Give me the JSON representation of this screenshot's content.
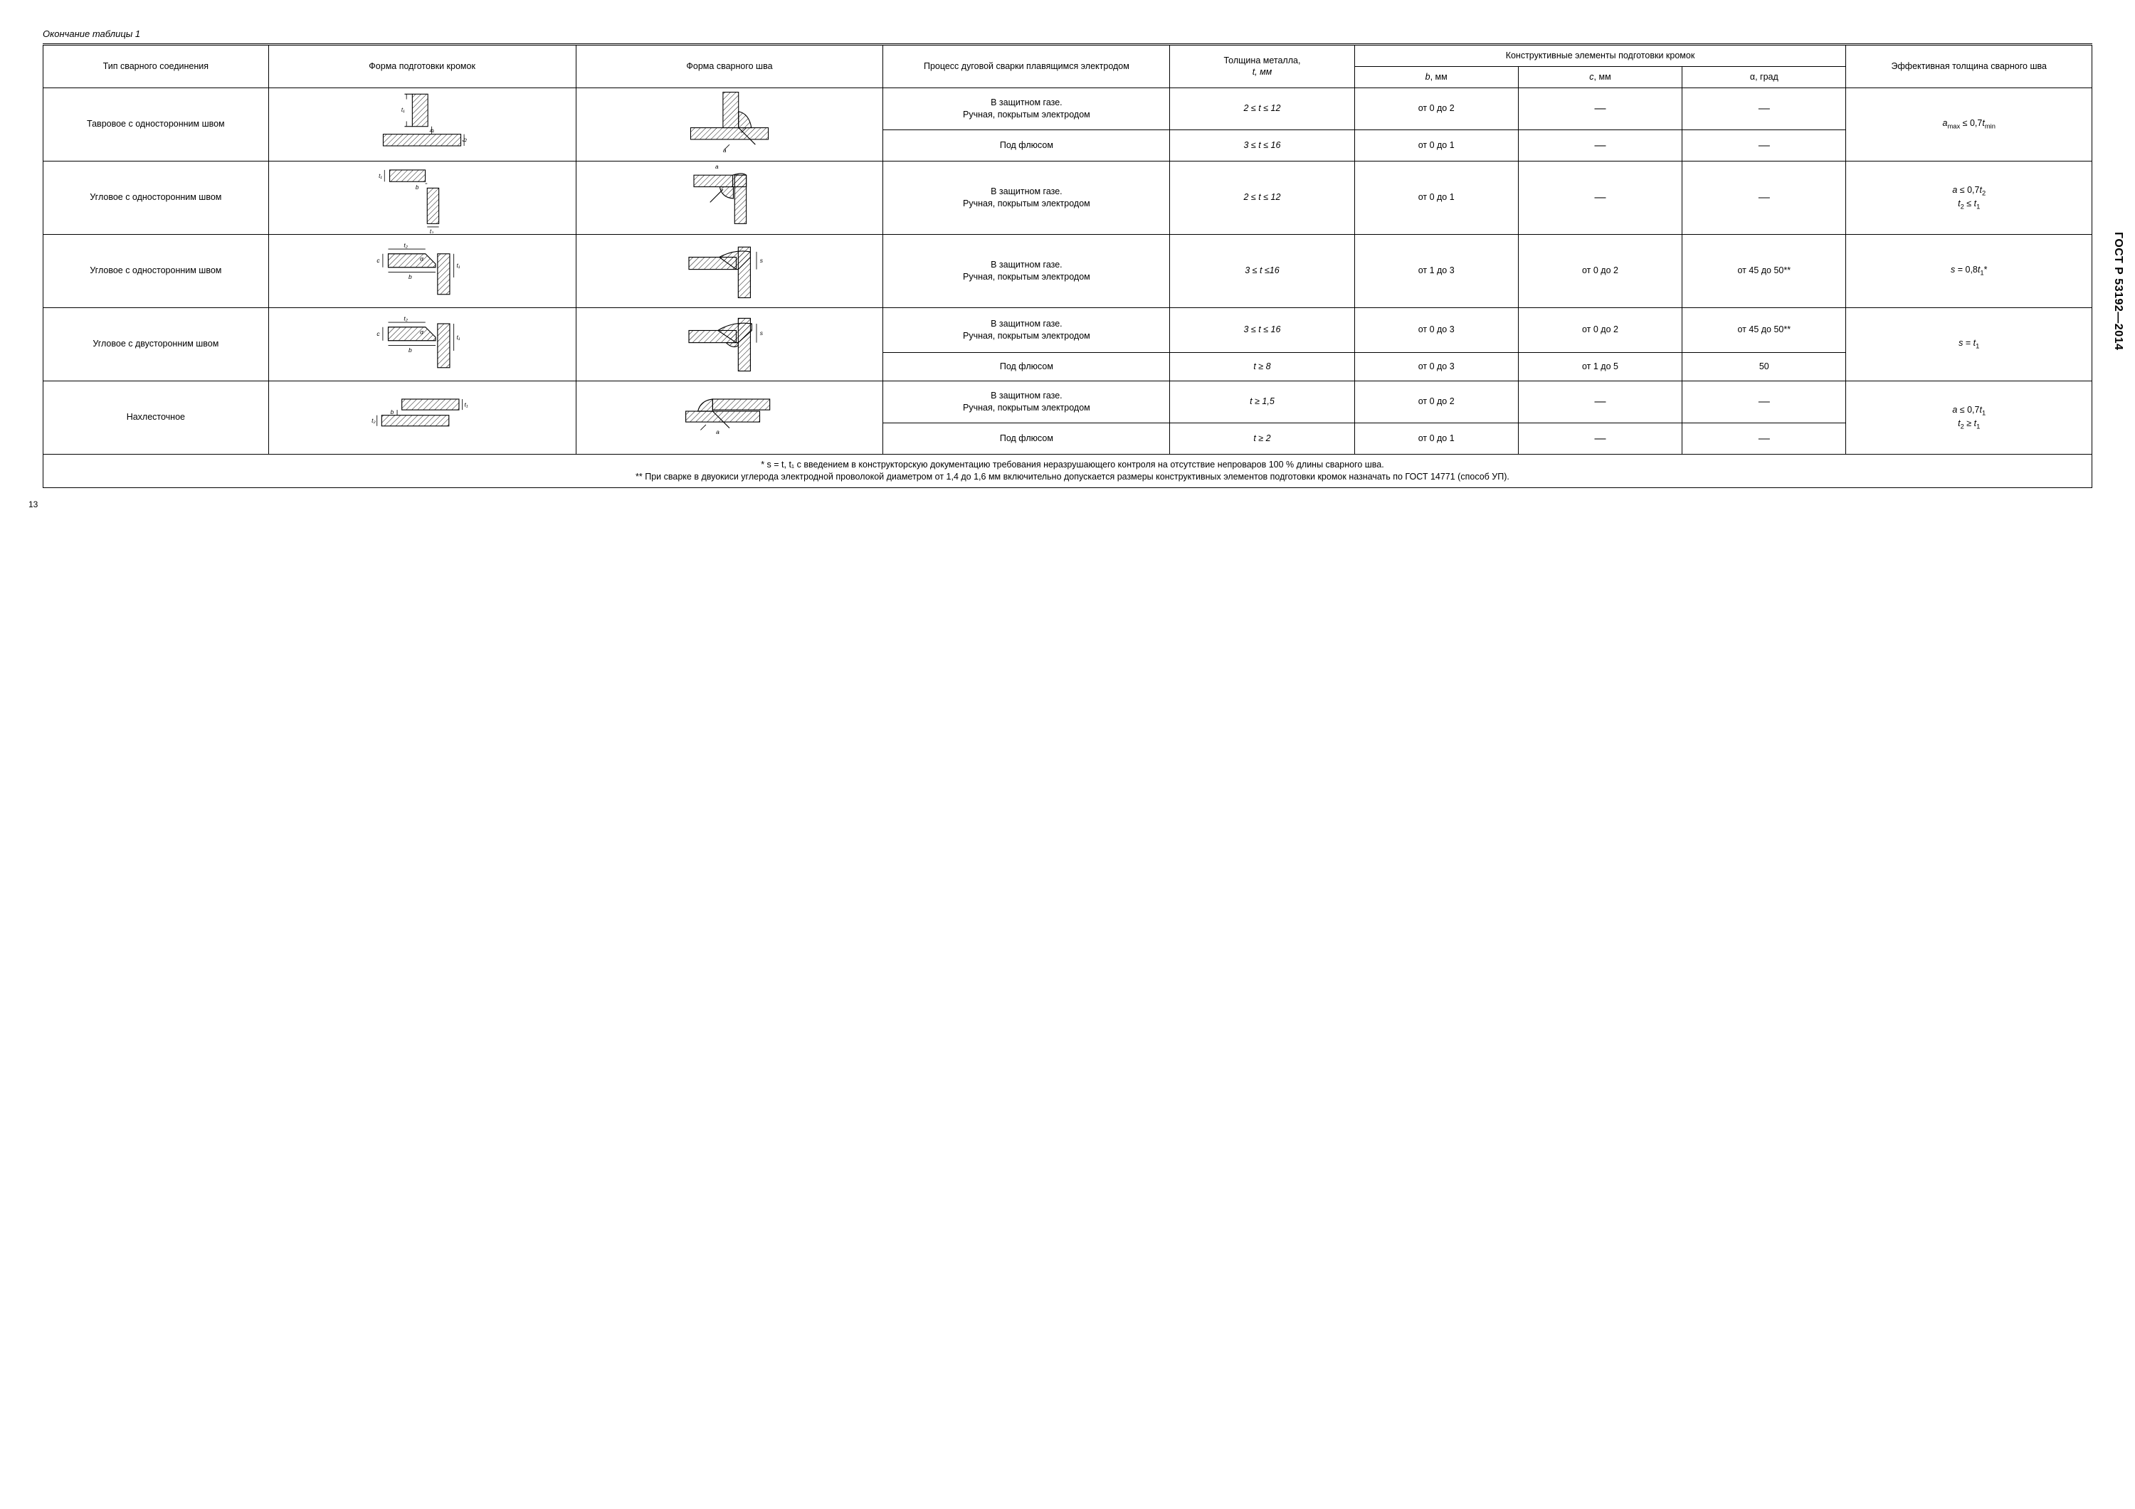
{
  "doc_id": "ГОСТ Р 53192—2014",
  "page_number": "13",
  "caption": "Окончание таблицы 1",
  "header": {
    "c1": "Тип сварного соединения",
    "c2": "Форма подготовки кромок",
    "c3": "Форма сварного шва",
    "c4": "Процесс дуговой сварки плавящимся электродом",
    "c5_top": "Толщина металла,",
    "c5_bot": "t, мм",
    "c6_group": "Конструктивные элементы подготовки кромок",
    "c6a": "b, мм",
    "c6b": "c, мм",
    "c6c": "α, град",
    "c7": "Эффективная толщина сварного шва"
  },
  "rows": [
    {
      "joint": "Тавровое с односторон­ним швом",
      "proc1": "В защитном газе.\nРучная, покры­тым электродом",
      "t1": "2 ≤ t ≤ 12",
      "b1": "от 0 до 2",
      "cc1": "—",
      "a1": "—",
      "proc2": "Под флюсом",
      "t2": "3 ≤ t ≤ 16",
      "b2": "от 0 до 1",
      "cc2": "—",
      "a2": "—",
      "eff_html": "<span class='em'>a</span><span class='sub'>max</span> ≤ 0,7<span class='em'>t</span><span class='sub'>min</span>"
    },
    {
      "joint": "Угловое с односторон­ним швом",
      "proc1": "В защитном газе.\nРучная, покры­тым электродом",
      "t1": "2 ≤ t ≤ 12",
      "b1": "от 0 до 1",
      "cc1": "—",
      "a1": "—",
      "eff_html": "<span class='em'>a</span> ≤ 0,7<span class='em'>t</span><span class='sub'>2</span><br><span class='em'>t</span><span class='sub'>2</span> ≤ <span class='em'>t</span><span class='sub'>1</span>"
    },
    {
      "joint": "Угловое с односторон­ним швом",
      "proc1": "В защитном газе.\nРучная, покры­тым электродом",
      "t1": "3 ≤ t ≤16",
      "b1": "от 1 до 3",
      "cc1": "от 0 до 2",
      "a1": "от 45 до 50**",
      "eff_html": "<span class='em'>s</span> = 0,8<span class='em'>t</span><span class='sub'>1</span>*"
    },
    {
      "joint": "Угловое с двусторонним швом",
      "proc1": "В защитном газе.\nРучная, покры­тым электродом",
      "t1": "3 ≤ t ≤ 16",
      "b1": "от 0 до 3",
      "cc1": "от 0 до 2",
      "a1": "от 45 до 50**",
      "proc2": "Под флюсом",
      "t2": "t ≥ 8",
      "b2": "от 0 до 3",
      "cc2": "от 1 до 5",
      "a2": "50",
      "eff_html": "<span class='em'>s</span> = <span class='em'>t</span><span class='sub'>1</span>"
    },
    {
      "joint": "Нахлесточное",
      "proc1": "В защитном газе.\nРучная, покры­тым электродом",
      "t1": "t ≥ 1,5",
      "b1": "от 0 до 2",
      "cc1": "—",
      "a1": "—",
      "proc2": "Под флюсом",
      "t2": "t ≥ 2",
      "b2": "от 0 до 1",
      "cc2": "—",
      "a2": "—",
      "eff_html": "<span class='em'>a</span> ≤ 0,7<span class='em'>t</span><span class='sub'>1</span><br><span class='em'>t</span><span class='sub'>2</span> ≥ <span class='em'>t</span><span class='sub'>1</span>"
    }
  ],
  "footnote1": "* s = t, t₁ с введением в конструкторскую документацию требования неразрушающего контроля на отсутствие непроваров 100 % длины сварного шва.",
  "footnote2": "** При сварке в двуокиси углерода электродной проволокой диаметром от 1,4 до 1,6 мм включительно допускается размеры конструктивных элементов подготовки кромок назначать по ГОСТ 14771 (способ УП).",
  "colwidths": [
    "11%",
    "15%",
    "15%",
    "14%",
    "9%",
    "8%",
    "8%",
    "8%",
    "12%"
  ],
  "colors": {
    "line": "#000000",
    "bg": "#ffffff"
  }
}
